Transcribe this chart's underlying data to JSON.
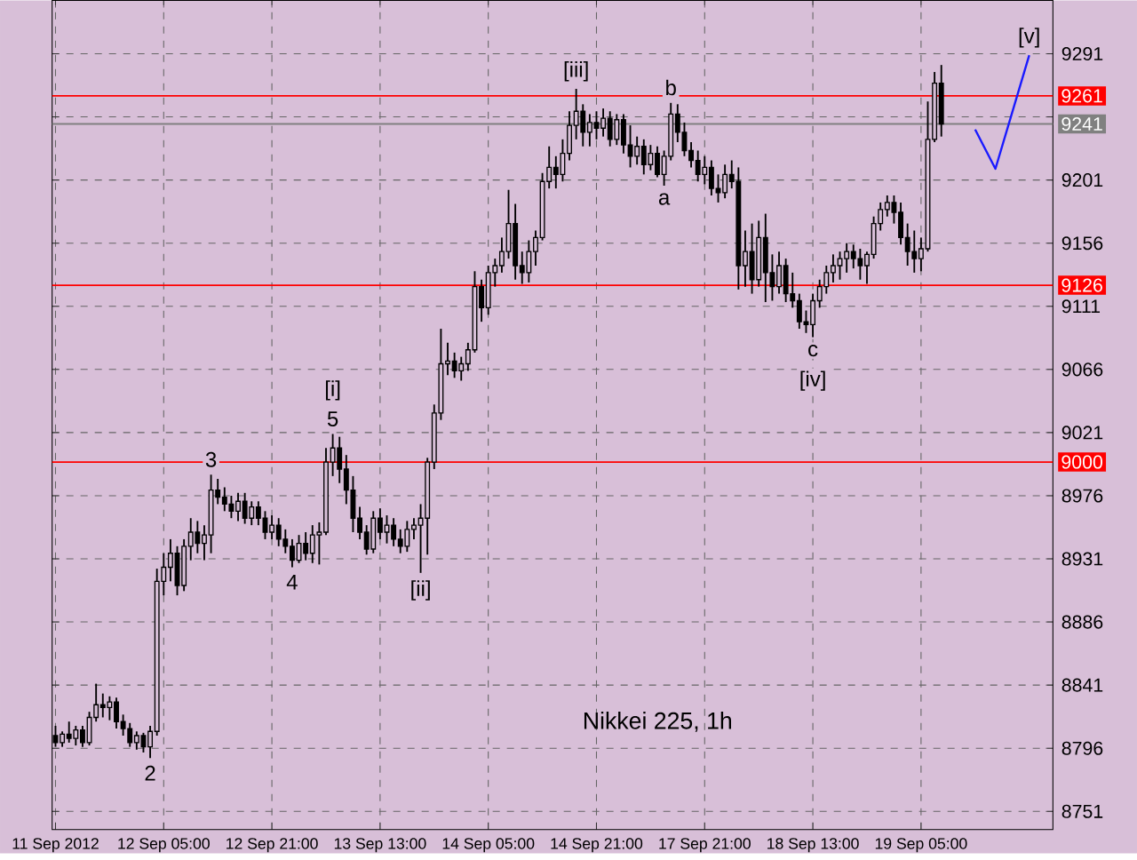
{
  "chart_data": {
    "type": "candlestick",
    "title": "Nikkei 225, 1h",
    "categories": [
      "11 Sep 2012",
      null,
      null,
      null,
      null,
      null,
      null,
      null,
      null,
      null,
      null,
      null,
      null,
      null,
      null,
      null,
      "12 Sep 05:00",
      null,
      null,
      null,
      null,
      null,
      null,
      null,
      null,
      null,
      null,
      null,
      null,
      null,
      null,
      null,
      "12 Sep 21:00",
      null,
      null,
      null,
      null,
      null,
      null,
      null,
      null,
      null,
      null,
      null,
      null,
      null,
      null,
      null,
      "13 Sep 13:00",
      null,
      null,
      null,
      null,
      null,
      null,
      null,
      null,
      null,
      null,
      null,
      null,
      null,
      null,
      null,
      "14 Sep 05:00",
      null,
      null,
      null,
      null,
      null,
      null,
      null,
      null,
      null,
      null,
      null,
      null,
      null,
      null,
      null,
      "14 Sep 21:00",
      null,
      null,
      null,
      null,
      null,
      null,
      null,
      null,
      null,
      null,
      null,
      null,
      null,
      null,
      null,
      "17 Sep 21:00",
      null,
      null,
      null,
      null,
      null,
      null,
      null,
      null,
      null,
      null,
      null,
      null,
      null,
      null,
      null,
      "18 Sep 13:00",
      null,
      null,
      null,
      null,
      null,
      null,
      null,
      null,
      null,
      null,
      null,
      null,
      null,
      null,
      null,
      "19 Sep 05:00",
      null,
      null,
      null,
      null,
      null,
      null,
      null,
      null,
      null,
      null,
      null,
      null,
      null,
      null,
      null,
      null,
      null,
      null,
      null
    ],
    "ohlc": [
      [
        8805,
        8812,
        8797,
        8800
      ],
      [
        8800,
        8808,
        8797,
        8806
      ],
      [
        8806,
        8815,
        8800,
        8803
      ],
      [
        8803,
        8812,
        8798,
        8809
      ],
      [
        8809,
        8812,
        8797,
        8800
      ],
      [
        8800,
        8822,
        8798,
        8818
      ],
      [
        8818,
        8842,
        8815,
        8827
      ],
      [
        8827,
        8835,
        8818,
        8825
      ],
      [
        8825,
        8833,
        8816,
        8829
      ],
      [
        8829,
        8832,
        8810,
        8815
      ],
      [
        8815,
        8820,
        8805,
        8810
      ],
      [
        8810,
        8814,
        8797,
        8800
      ],
      [
        8800,
        8808,
        8795,
        8805
      ],
      [
        8805,
        8807,
        8793,
        8797
      ],
      [
        8797,
        8812,
        8789,
        8808
      ],
      [
        8808,
        8924,
        8805,
        8915
      ],
      [
        8915,
        8935,
        8905,
        8925
      ],
      [
        8925,
        8945,
        8915,
        8935
      ],
      [
        8935,
        8940,
        8905,
        8912
      ],
      [
        8912,
        8945,
        8908,
        8940
      ],
      [
        8940,
        8960,
        8930,
        8950
      ],
      [
        8950,
        8958,
        8935,
        8942
      ],
      [
        8942,
        8955,
        8930,
        8948
      ],
      [
        8948,
        8991,
        8935,
        8980
      ],
      [
        8980,
        8988,
        8970,
        8975
      ],
      [
        8975,
        8982,
        8965,
        8970
      ],
      [
        8970,
        8976,
        8960,
        8965
      ],
      [
        8965,
        8978,
        8958,
        8972
      ],
      [
        8972,
        8978,
        8956,
        8960
      ],
      [
        8960,
        8972,
        8955,
        8968
      ],
      [
        8968,
        8972,
        8955,
        8960
      ],
      [
        8960,
        8965,
        8945,
        8950
      ],
      [
        8950,
        8962,
        8945,
        8955
      ],
      [
        8955,
        8960,
        8940,
        8945
      ],
      [
        8945,
        8952,
        8935,
        8940
      ],
      [
        8940,
        8945,
        8925,
        8930
      ],
      [
        8930,
        8948,
        8928,
        8942
      ],
      [
        8942,
        8950,
        8930,
        8935
      ],
      [
        8935,
        8955,
        8928,
        8948
      ],
      [
        8948,
        8957,
        8927,
        8950
      ],
      [
        8950,
        9010,
        8948,
        9000
      ],
      [
        9000,
        9020,
        8990,
        9010
      ],
      [
        9010,
        9018,
        8985,
        8995
      ],
      [
        8995,
        9005,
        8970,
        8980
      ],
      [
        8980,
        8990,
        8950,
        8960
      ],
      [
        8960,
        8968,
        8945,
        8950
      ],
      [
        8950,
        8955,
        8934,
        8938
      ],
      [
        8938,
        8965,
        8935,
        8960
      ],
      [
        8960,
        8967,
        8945,
        8950
      ],
      [
        8950,
        8962,
        8942,
        8955
      ],
      [
        8955,
        8960,
        8940,
        8945
      ],
      [
        8945,
        8952,
        8935,
        8940
      ],
      [
        8940,
        8958,
        8936,
        8952
      ],
      [
        8952,
        8960,
        8945,
        8955
      ],
      [
        8955,
        8970,
        8921,
        8960
      ],
      [
        8960,
        9003,
        8934,
        9000
      ],
      [
        9000,
        9041,
        8995,
        9035
      ],
      [
        9035,
        9095,
        9030,
        9070
      ],
      [
        9070,
        9085,
        9062,
        9072
      ],
      [
        9072,
        9078,
        9060,
        9065
      ],
      [
        9065,
        9075,
        9058,
        9070
      ],
      [
        9070,
        9085,
        9065,
        9080
      ],
      [
        9080,
        9136,
        9078,
        9125
      ],
      [
        9125,
        9130,
        9100,
        9110
      ],
      [
        9110,
        9140,
        9105,
        9135
      ],
      [
        9135,
        9145,
        9125,
        9140
      ],
      [
        9140,
        9160,
        9135,
        9150
      ],
      [
        9150,
        9194,
        9145,
        9170
      ],
      [
        9170,
        9184,
        9130,
        9140
      ],
      [
        9140,
        9150,
        9127,
        9135
      ],
      [
        9135,
        9158,
        9128,
        9150
      ],
      [
        9150,
        9165,
        9140,
        9160
      ],
      [
        9160,
        9206,
        9158,
        9200
      ],
      [
        9200,
        9225,
        9195,
        9210
      ],
      [
        9210,
        9218,
        9195,
        9205
      ],
      [
        9205,
        9230,
        9200,
        9220
      ],
      [
        9220,
        9250,
        9215,
        9240
      ],
      [
        9240,
        9266,
        9230,
        9250
      ],
      [
        9250,
        9255,
        9225,
        9235
      ],
      [
        9235,
        9248,
        9225,
        9242
      ],
      [
        9242,
        9250,
        9230,
        9238
      ],
      [
        9238,
        9252,
        9232,
        9245
      ],
      [
        9245,
        9250,
        9225,
        9230
      ],
      [
        9230,
        9248,
        9226,
        9244
      ],
      [
        9244,
        9248,
        9220,
        9226
      ],
      [
        9226,
        9240,
        9210,
        9218
      ],
      [
        9218,
        9232,
        9212,
        9225
      ],
      [
        9225,
        9230,
        9205,
        9212
      ],
      [
        9212,
        9226,
        9208,
        9220
      ],
      [
        9220,
        9225,
        9203,
        9205
      ],
      [
        9205,
        9222,
        9197,
        9218
      ],
      [
        9218,
        9256,
        9215,
        9248
      ],
      [
        9248,
        9255,
        9228,
        9235
      ],
      [
        9235,
        9242,
        9218,
        9222
      ],
      [
        9222,
        9228,
        9210,
        9215
      ],
      [
        9215,
        9222,
        9200,
        9205
      ],
      [
        9205,
        9218,
        9198,
        9210
      ],
      [
        9210,
        9215,
        9190,
        9195
      ],
      [
        9195,
        9205,
        9185,
        9192
      ],
      [
        9192,
        9212,
        9188,
        9205
      ],
      [
        9205,
        9215,
        9195,
        9200
      ],
      [
        9200,
        9210,
        9123,
        9140
      ],
      [
        9140,
        9165,
        9125,
        9150
      ],
      [
        9150,
        9170,
        9120,
        9130
      ],
      [
        9130,
        9172,
        9125,
        9160
      ],
      [
        9160,
        9177,
        9114,
        9135
      ],
      [
        9135,
        9148,
        9115,
        9125
      ],
      [
        9125,
        9150,
        9120,
        9140
      ],
      [
        9140,
        9145,
        9114,
        9120
      ],
      [
        9120,
        9135,
        9110,
        9115
      ],
      [
        9115,
        9120,
        9095,
        9100
      ],
      [
        9100,
        9108,
        9092,
        9098
      ],
      [
        9098,
        9120,
        9089,
        9115
      ],
      [
        9115,
        9130,
        9110,
        9125
      ],
      [
        9125,
        9140,
        9120,
        9135
      ],
      [
        9135,
        9148,
        9128,
        9140
      ],
      [
        9140,
        9150,
        9130,
        9145
      ],
      [
        9145,
        9156,
        9135,
        9150
      ],
      [
        9150,
        9155,
        9138,
        9145
      ],
      [
        9145,
        9152,
        9130,
        9140
      ],
      [
        9140,
        9150,
        9127,
        9148
      ],
      [
        9148,
        9175,
        9145,
        9170
      ],
      [
        9170,
        9185,
        9165,
        9180
      ],
      [
        9180,
        9190,
        9175,
        9185
      ],
      [
        9185,
        9190,
        9170,
        9178
      ],
      [
        9178,
        9185,
        9155,
        9160
      ],
      [
        9160,
        9170,
        9140,
        9150
      ],
      [
        9150,
        9165,
        9135,
        9145
      ],
      [
        9145,
        9160,
        9136,
        9152
      ],
      [
        9152,
        9257,
        9150,
        9230
      ],
      [
        9230,
        9278,
        9228,
        9270
      ],
      [
        9270,
        9283,
        9232,
        9241
      ],
      null,
      null,
      null,
      null,
      null,
      null,
      null,
      null,
      null,
      null,
      null,
      null,
      null,
      null,
      null,
      null
    ],
    "series": [
      {
        "type": "line",
        "color": "#1a1aff",
        "values": [
          null,
          null,
          null,
          null,
          null,
          null,
          null,
          null,
          null,
          null,
          null,
          null,
          null,
          null,
          null,
          null,
          null,
          null,
          null,
          null,
          null,
          null,
          null,
          null,
          null,
          null,
          null,
          null,
          null,
          null,
          null,
          null,
          null,
          null,
          null,
          null,
          null,
          null,
          null,
          null,
          null,
          null,
          null,
          null,
          null,
          null,
          null,
          null,
          null,
          null,
          null,
          null,
          null,
          null,
          null,
          null,
          null,
          null,
          null,
          null,
          null,
          null,
          null,
          null,
          null,
          null,
          null,
          null,
          null,
          null,
          null,
          null,
          null,
          null,
          null,
          null,
          null,
          null,
          null,
          null,
          null,
          null,
          null,
          null,
          null,
          null,
          null,
          null,
          null,
          null,
          null,
          null,
          null,
          null,
          null,
          null,
          null,
          null,
          null,
          null,
          null,
          null,
          null,
          null,
          null,
          null,
          null,
          null,
          null,
          null,
          null,
          null,
          null,
          null,
          null,
          null,
          null,
          null,
          null,
          null,
          null,
          null,
          null,
          null,
          null,
          null,
          null,
          null,
          null,
          null,
          null,
          null,
          null,
          null,
          null,
          null,
          9237,
          null,
          null,
          9209,
          null,
          null,
          null,
          null,
          9290,
          null,
          null,
          null
        ]
      }
    ],
    "ylim": [
      8738,
      9329
    ],
    "yticks": [
      8751,
      8796,
      8841,
      8886,
      8931,
      8976,
      9021,
      9066,
      9111,
      9156,
      9201,
      {
        "value": 9246,
        "label": null
      },
      9291
    ],
    "grid": true,
    "ref_lines": [
      {
        "axis": "y",
        "value": 9261,
        "label": "9261",
        "color": "#ff0000"
      },
      {
        "axis": "y",
        "value": 9241,
        "label": "9241",
        "color": "#808080"
      },
      {
        "axis": "y",
        "value": 9126,
        "label": "9126",
        "color": "#ff0000"
      },
      {
        "axis": "y",
        "value": 9000,
        "label": "9000",
        "color": "#ff0000"
      }
    ],
    "annotations": [
      {
        "text": "2",
        "y": 8789
      },
      {
        "text": "3",
        "y": 8991
      },
      {
        "text": "4",
        "y": 8925
      },
      {
        "text": "5",
        "y": 9020
      },
      {
        "text": "[i]",
        "y": 9020
      },
      {
        "text": "[ii]",
        "y": 8921
      },
      {
        "text": "[iii]",
        "y": 9266
      },
      {
        "text": "a",
        "y": 9197
      },
      {
        "text": "b",
        "y": 9256
      },
      {
        "text": "c",
        "y": 9089
      },
      {
        "text": "[iv]",
        "y": 9089
      },
      {
        "text": "[v]",
        "y": 9290
      }
    ]
  }
}
